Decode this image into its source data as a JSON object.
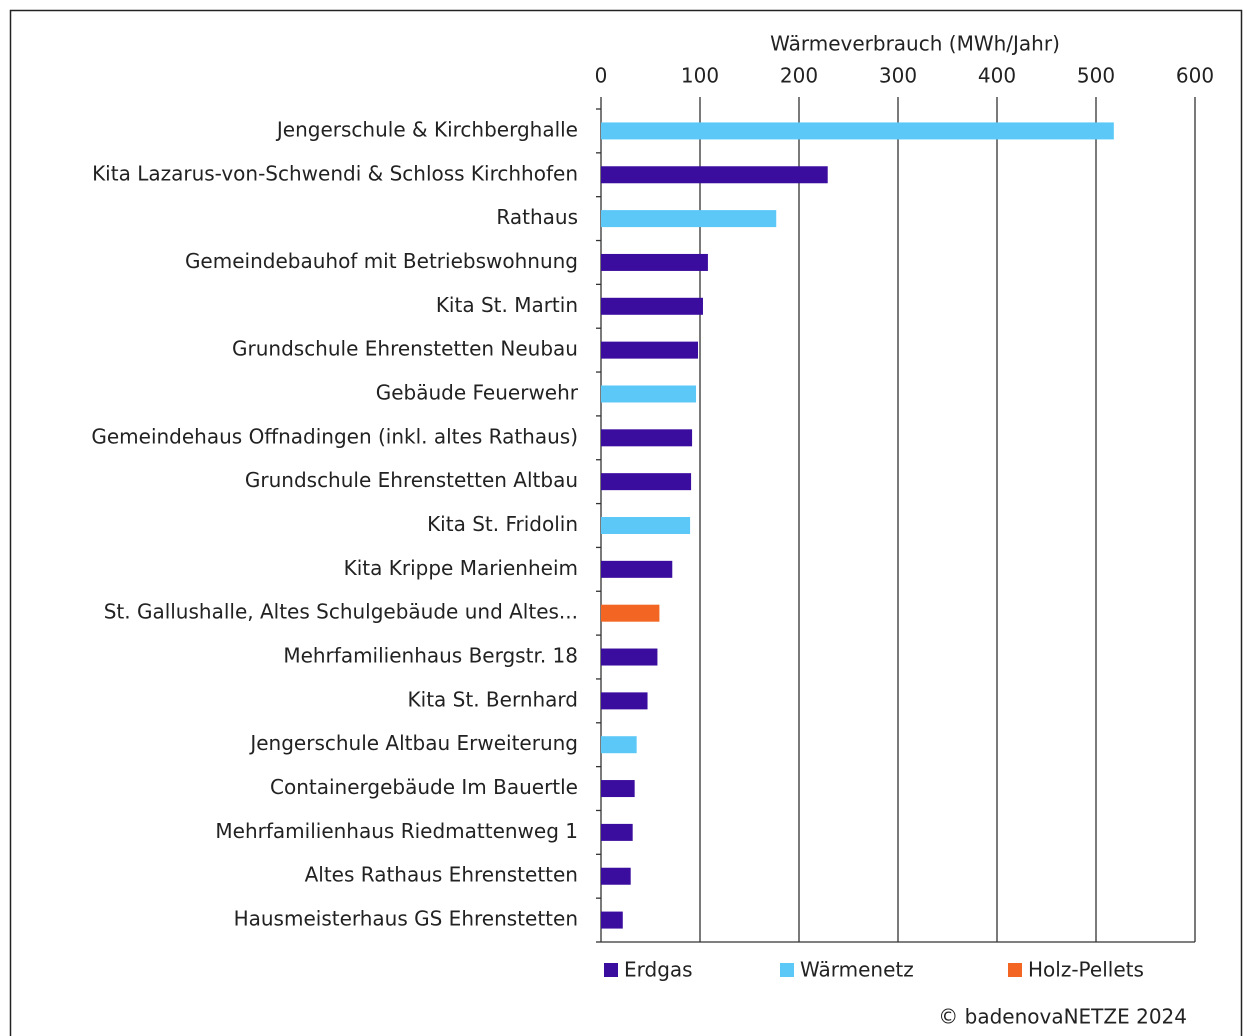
{
  "chart_data": {
    "type": "bar",
    "orientation": "horizontal",
    "x_label": "Wärmeverbrauch (MWh/Jahr)",
    "categories": [
      "Jengerschule & Kirchberghalle",
      "Kita Lazarus-von-Schwendi & Schloss Kirchhofen",
      "Rathaus",
      "Gemeindebauhof mit Betriebswohnung",
      "Kita  St. Martin",
      "Grundschule Ehrenstetten Neubau",
      "Gebäude Feuerwehr",
      "Gemeindehaus Offnadingen (inkl. altes Rathaus)",
      "Grundschule Ehrenstetten Altbau",
      "Kita St. Fridolin",
      "Kita Krippe Marienheim",
      "St. Gallushalle, Altes Schulgebäude und Altes...",
      "Mehrfamilienhaus Bergstr. 18",
      "Kita St. Bernhard",
      "Jengerschule Altbau Erweiterung",
      "Containergebäude Im Bauertle",
      "Mehrfamilienhaus Riedmattenweg 1",
      "Altes Rathaus Ehrenstetten",
      "Hausmeisterhaus GS Ehrenstetten"
    ],
    "series": [
      {
        "name": "Erdgas",
        "color": "#3b0d9e",
        "values": [
          null,
          229,
          null,
          108,
          103,
          98,
          null,
          92,
          91,
          null,
          72,
          null,
          57,
          47,
          null,
          34,
          32,
          30,
          22
        ]
      },
      {
        "name": "Wärmenetz",
        "color": "#5cc8f7",
        "values": [
          518,
          null,
          177,
          null,
          null,
          null,
          96,
          null,
          null,
          90,
          null,
          null,
          null,
          null,
          36,
          null,
          null,
          null,
          null
        ]
      },
      {
        "name": "Holz-Pellets",
        "color": "#f26522",
        "values": [
          null,
          null,
          null,
          null,
          null,
          null,
          null,
          null,
          null,
          null,
          null,
          59,
          null,
          null,
          null,
          null,
          null,
          null,
          null
        ]
      }
    ],
    "xlim": [
      0,
      600
    ],
    "xticks": [
      0,
      100,
      200,
      300,
      400,
      500,
      600
    ],
    "grid": true,
    "legend": "bottom",
    "source": "© badenovaNETZE 2024"
  }
}
